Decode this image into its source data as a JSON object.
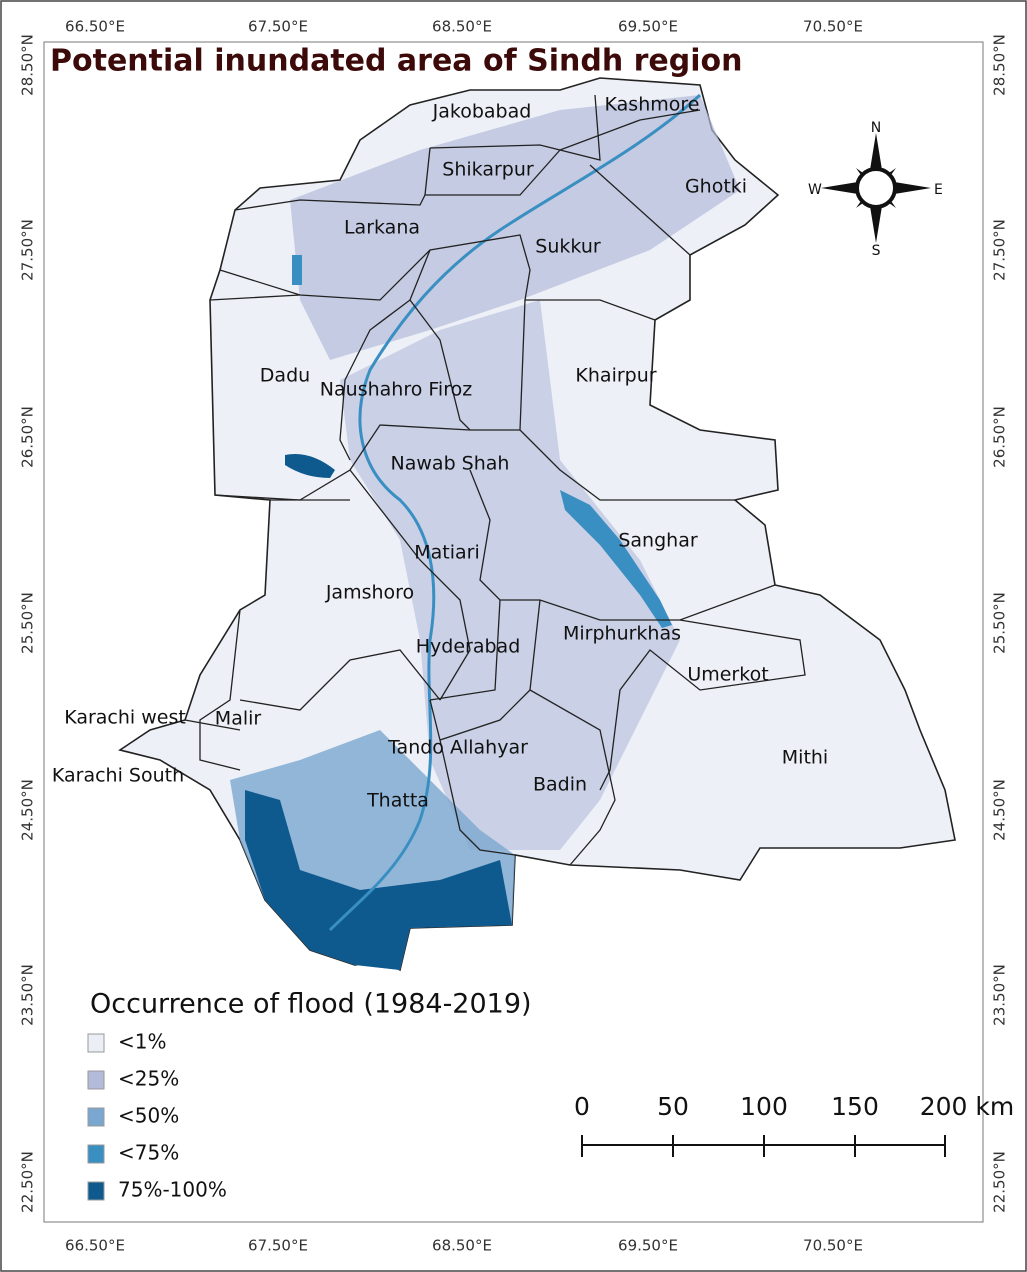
{
  "title": "Potential inundated area of Sindh region",
  "graticule": {
    "lon_top": [
      "66.50°E",
      "67.50°E",
      "68.50°E",
      "69.50°E",
      "70.50°E"
    ],
    "lon_bottom": [
      "66.50°E",
      "67.50°E",
      "68.50°E",
      "69.50°E",
      "70.50°E"
    ],
    "lat_left": [
      "28.50°N",
      "27.50°N",
      "26.50°N",
      "25.50°N",
      "24.50°N",
      "23.50°N",
      "22.50°N"
    ],
    "lat_right": [
      "28.50°N",
      "27.50°N",
      "26.50°N",
      "25.50°N",
      "24.50°N",
      "23.50°N",
      "22.50°N"
    ]
  },
  "districts": [
    "Jakobabad",
    "Kashmore",
    "Shikarpur",
    "Ghotki",
    "Larkana",
    "Sukkur",
    "Dadu",
    "Naushahro Firoz",
    "Khairpur",
    "Nawab Shah",
    "Sanghar",
    "Matiari",
    "Jamshoro",
    "Hyderabad",
    "Mirphurkhas",
    "Umerkot",
    "Karachi west",
    "Malir",
    "Tando Allahyar",
    "Karachi South",
    "Mithi",
    "Badin",
    "Thatta"
  ],
  "legend": {
    "title": "Occurrence of flood (1984-2019)",
    "items": [
      {
        "label": "<1%",
        "color": "#eceef6"
      },
      {
        "label": "<25%",
        "color": "#b3bbd9"
      },
      {
        "label": "<50%",
        "color": "#7aa7cf"
      },
      {
        "label": "<75%",
        "color": "#3a8fc2"
      },
      {
        "label": "75%-100%",
        "color": "#0e5a8f"
      }
    ]
  },
  "scale_bar": {
    "labels": [
      "0",
      "50",
      "100",
      "150",
      "200 km"
    ]
  },
  "north_arrow": {
    "n": "N",
    "s": "S",
    "e": "E",
    "w": "W"
  }
}
